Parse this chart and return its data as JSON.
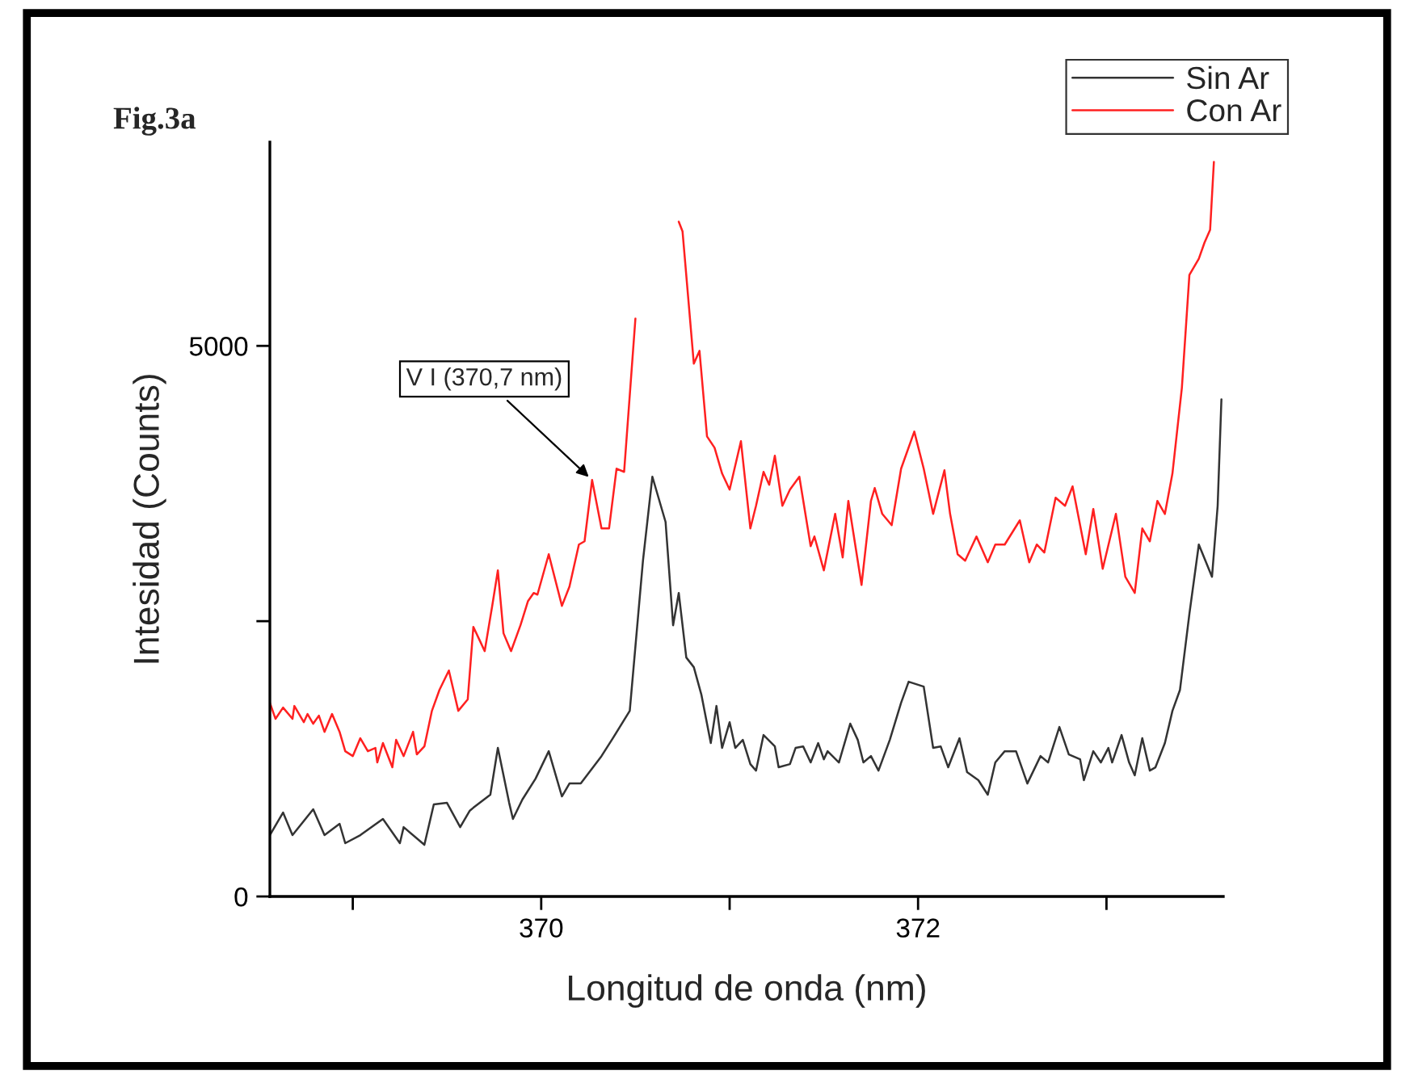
{
  "chart_data": {
    "type": "line",
    "title": "Fig.3a",
    "xlabel": "Longitud de onda (nm)",
    "ylabel": "Intesidad (Counts)",
    "xlim": [
      368.56,
      373.62
    ],
    "ylim": [
      0,
      6850
    ],
    "xticks": [
      {
        "value": 369,
        "label": null
      },
      370,
      {
        "value": 371,
        "label": null
      },
      372,
      {
        "value": 373,
        "label": null
      }
    ],
    "yticks": [
      0,
      {
        "value": 2500,
        "label": null
      },
      5000
    ],
    "grid": false,
    "legend": "top right",
    "marker": "none",
    "line_style": "solid",
    "annotations": [
      {
        "text": "V I (370,7 nm)",
        "x": 370.27,
        "y": 3782
      }
    ],
    "series": [
      {
        "name": "Sin Ar",
        "color": "#333333",
        "x": [
          368.56,
          368.63,
          368.68,
          368.79,
          368.85,
          368.93,
          368.96,
          369.04,
          369.16,
          369.25,
          369.27,
          369.38,
          369.43,
          369.5,
          369.57,
          369.62,
          369.64,
          369.73,
          369.77,
          369.83,
          369.85,
          369.9,
          369.97,
          370.04,
          370.11,
          370.15,
          370.21,
          370.32,
          370.38,
          370.47,
          370.54,
          370.59,
          370.66,
          370.7,
          370.73,
          370.77,
          370.81,
          370.85,
          370.9,
          370.93,
          370.96,
          371.0,
          371.03,
          371.07,
          371.11,
          371.14,
          371.18,
          371.24,
          371.26,
          371.32,
          371.35,
          371.39,
          371.43,
          371.47,
          371.5,
          371.52,
          371.58,
          371.64,
          371.68,
          371.71,
          371.75,
          371.79,
          371.85,
          371.91,
          371.95,
          372.03,
          372.08,
          372.12,
          372.16,
          372.22,
          372.26,
          372.32,
          372.37,
          372.41,
          372.46,
          372.52,
          372.58,
          372.65,
          372.69,
          372.75,
          372.8,
          372.86,
          372.88,
          372.93,
          372.97,
          373.01,
          373.03,
          373.08,
          373.12,
          373.15,
          373.19,
          373.23,
          373.26,
          373.31,
          373.35,
          373.39,
          373.44,
          373.49,
          373.56,
          373.59,
          373.61
        ],
        "values": [
          557,
          762,
          557,
          792,
          557,
          660,
          484,
          557,
          704,
          484,
          630,
          469,
          836,
          850,
          630,
          777,
          806,
          924,
          1349,
          850,
          704,
          880,
          1070,
          1319,
          909,
          1026,
          1026,
          1275,
          1437,
          1686,
          3049,
          3812,
          3401,
          2463,
          2756,
          2170,
          2082,
          1833,
          1393,
          1730,
          1349,
          1583,
          1349,
          1422,
          1202,
          1143,
          1466,
          1363,
          1173,
          1202,
          1349,
          1363,
          1217,
          1393,
          1246,
          1319,
          1217,
          1569,
          1422,
          1217,
          1275,
          1143,
          1422,
          1759,
          1950,
          1906,
          1349,
          1363,
          1173,
          1437,
          1129,
          1056,
          924,
          1217,
          1319,
          1319,
          1026,
          1275,
          1217,
          1539,
          1290,
          1246,
          1056,
          1319,
          1217,
          1349,
          1217,
          1466,
          1217,
          1100,
          1437,
          1143,
          1173,
          1393,
          1686,
          1876,
          2566,
          3196,
          2903,
          3548,
          4515
        ]
      },
      {
        "name": "Con Ar",
        "color": "#ff2020",
        "x": [
          368.56,
          368.59,
          368.63,
          368.68,
          368.69,
          368.74,
          368.76,
          368.79,
          368.82,
          368.85,
          368.89,
          368.93,
          368.96,
          369.0,
          369.04,
          369.08,
          369.12,
          369.13,
          369.16,
          369.21,
          369.23,
          369.27,
          369.32,
          369.34,
          369.38,
          369.42,
          369.46,
          369.51,
          369.56,
          369.61,
          369.64,
          369.68,
          369.7,
          369.74,
          369.77,
          369.8,
          369.84,
          369.89,
          369.93,
          369.96,
          369.98,
          370.04,
          370.11,
          370.15,
          370.2,
          370.23,
          370.27,
          370.32,
          370.36,
          370.4,
          370.44,
          370.5,
          370.54,
          370.71,
          370.73,
          370.75,
          370.81,
          370.84,
          370.88,
          370.92,
          370.96,
          371.0,
          371.06,
          371.11,
          371.14,
          371.18,
          371.21,
          371.24,
          371.28,
          371.32,
          371.37,
          371.43,
          371.45,
          371.5,
          371.56,
          371.6,
          371.63,
          371.7,
          371.75,
          371.77,
          371.81,
          371.86,
          371.91,
          371.98,
          372.03,
          372.08,
          372.14,
          372.17,
          372.21,
          372.25,
          372.31,
          372.37,
          372.41,
          372.46,
          372.54,
          372.59,
          372.63,
          372.67,
          372.73,
          372.78,
          372.82,
          372.89,
          372.93,
          372.98,
          373.05,
          373.1,
          373.15,
          373.19,
          373.23,
          373.27,
          373.31,
          373.35,
          373.4,
          373.44,
          373.49,
          373.52,
          373.55,
          373.57
        ],
        "values": [
          1759,
          1613,
          1715,
          1613,
          1730,
          1583,
          1657,
          1569,
          1642,
          1495,
          1657,
          1495,
          1319,
          1275,
          1437,
          1319,
          1349,
          1217,
          1393,
          1173,
          1422,
          1275,
          1495,
          1290,
          1363,
          1686,
          1876,
          2052,
          1686,
          1789,
          2448,
          2302,
          2228,
          2639,
          2961,
          2390,
          2228,
          2463,
          2683,
          2756,
          2741,
          3108,
          2639,
          2815,
          3196,
          3225,
          3782,
          3342,
          3342,
          3885,
          3856,
          5248,
          null,
          null,
          6128,
          6040,
          4838,
          4955,
          4178,
          4075,
          3841,
          3694,
          4134,
          3342,
          3548,
          3856,
          3738,
          4002,
          3548,
          3694,
          3812,
          3181,
          3269,
          2961,
          3474,
          3079,
          3592,
          2829,
          3592,
          3709,
          3474,
          3372,
          3885,
          4222,
          3885,
          3474,
          3870,
          3474,
          3108,
          3049,
          3269,
          3035,
          3196,
          3196,
          3416,
          3035,
          3196,
          3123,
          3621,
          3548,
          3724,
          3108,
          3518,
          2976,
          3474,
          2903,
          2756,
          3342,
          3225,
          3592,
          3474,
          3841,
          4618,
          5644,
          5791,
          5937,
          6055,
          6670
        ]
      }
    ]
  }
}
